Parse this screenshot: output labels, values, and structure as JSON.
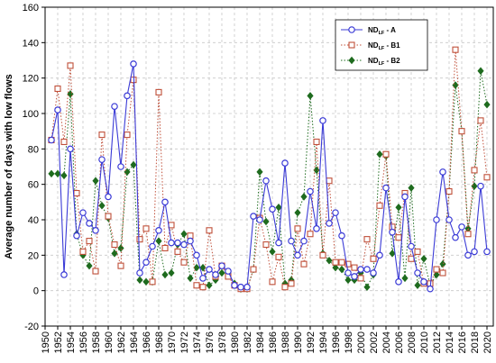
{
  "chart_data": {
    "type": "line",
    "title": "",
    "xlabel": "",
    "ylabel": "Average number of days with low flows",
    "ylim": [
      -20,
      160
    ],
    "yticks": [
      -20,
      0,
      20,
      40,
      60,
      80,
      100,
      120,
      140,
      160
    ],
    "xlim": [
      1950,
      2021
    ],
    "xticks": [
      1950,
      1952,
      1954,
      1956,
      1958,
      1960,
      1962,
      1964,
      1966,
      1968,
      1970,
      1972,
      1974,
      1976,
      1978,
      1980,
      1982,
      1984,
      1986,
      1988,
      1990,
      1992,
      1994,
      1996,
      1998,
      2000,
      2002,
      2004,
      2006,
      2008,
      2010,
      2012,
      2014,
      2016,
      2018,
      2020
    ],
    "grid": true,
    "legend_position": "top-right",
    "x": [
      1951,
      1952,
      1953,
      1954,
      1955,
      1956,
      1957,
      1958,
      1959,
      1960,
      1961,
      1962,
      1963,
      1964,
      1965,
      1966,
      1967,
      1968,
      1969,
      1970,
      1971,
      1972,
      1973,
      1974,
      1975,
      1976,
      1977,
      1978,
      1979,
      1980,
      1981,
      1982,
      1983,
      1984,
      1985,
      1986,
      1987,
      1988,
      1989,
      1990,
      1991,
      1992,
      1993,
      1994,
      1995,
      1996,
      1997,
      1998,
      1999,
      2000,
      2001,
      2002,
      2003,
      2004,
      2005,
      2006,
      2007,
      2008,
      2009,
      2010,
      2011,
      2012,
      2013,
      2014,
      2015,
      2016,
      2017,
      2018,
      2019,
      2020
    ],
    "series": [
      {
        "name_main": "ND",
        "name_sub": "LF",
        "name_suffix": " - A",
        "color": "#3b3bd6",
        "line_style": "solid",
        "marker": "circle",
        "values": [
          85,
          102,
          9,
          80,
          31,
          44,
          38,
          34,
          74,
          53,
          104,
          70,
          110,
          128,
          10,
          16,
          25,
          34,
          50,
          27,
          27,
          26,
          28,
          20,
          7,
          12,
          9,
          14,
          11,
          3,
          2,
          2,
          42,
          40,
          62,
          46,
          27,
          72,
          28,
          20,
          28,
          56,
          35,
          96,
          38,
          44,
          31,
          10,
          8,
          12,
          12,
          10,
          20,
          58,
          33,
          5,
          53,
          25,
          10,
          5,
          1,
          40,
          67,
          40,
          30,
          36,
          20,
          22,
          59,
          22
        ]
      },
      {
        "name_main": "ND",
        "name_sub": "LF",
        "name_suffix": " - B1",
        "color": "#c0503a",
        "line_style": "dotted",
        "marker": "square",
        "values": [
          85,
          114,
          84,
          127,
          55,
          22,
          28,
          11,
          88,
          42,
          26,
          14,
          88,
          119,
          29,
          35,
          5,
          112,
          24,
          37,
          22,
          16,
          31,
          3,
          2,
          34,
          8,
          14,
          8,
          3,
          1,
          1,
          12,
          41,
          26,
          5,
          19,
          2,
          4,
          35,
          15,
          32,
          84,
          20,
          62,
          16,
          16,
          15,
          13,
          7,
          29,
          18,
          48,
          77,
          36,
          30,
          55,
          18,
          22,
          4,
          4,
          12,
          10,
          56,
          136,
          90,
          32,
          68,
          96,
          64
        ]
      },
      {
        "name_main": "ND",
        "name_sub": "LF",
        "name_suffix": " - B2",
        "color": "#1e6b1e",
        "line_style": "dotted",
        "marker": "diamond",
        "values": [
          66,
          66,
          65,
          111,
          32,
          20,
          14,
          62,
          48,
          41,
          21,
          24,
          67,
          71,
          6,
          5,
          5,
          28,
          9,
          10,
          26,
          32,
          7,
          13,
          13,
          3,
          6,
          10,
          10,
          4,
          1,
          1,
          12,
          67,
          39,
          22,
          47,
          4,
          6,
          44,
          53,
          110,
          68,
          21,
          17,
          13,
          12,
          6,
          6,
          10,
          2,
          9,
          77,
          76,
          21,
          47,
          7,
          58,
          3,
          18,
          3,
          9,
          15,
          56,
          116,
          90,
          35,
          59,
          124,
          105
        ]
      }
    ]
  }
}
